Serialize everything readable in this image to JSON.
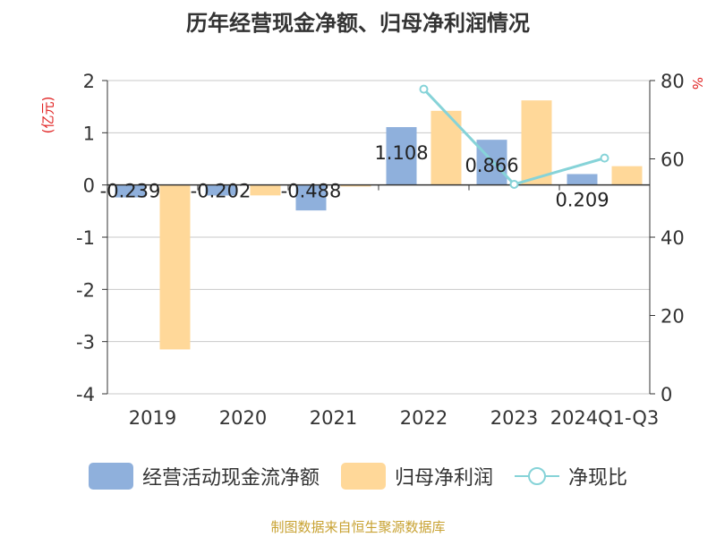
{
  "title": "历年经营现金净额、归母净利润情况",
  "left_unit": "(亿元)",
  "right_unit": "%",
  "source": "制图数据来自恒生聚源数据库",
  "colors": {
    "cash": "#8fb0dc",
    "profit": "#ffd899",
    "ratio": "#86d3d8"
  },
  "legend": [
    {
      "name": "经营活动现金流净额",
      "kind": "bar",
      "color": "#8fb0dc"
    },
    {
      "name": "归母净利润",
      "kind": "bar",
      "color": "#ffd899"
    },
    {
      "name": "净现比",
      "kind": "line",
      "color": "#86d3d8"
    }
  ],
  "chart_data": {
    "type": "bar",
    "categories": [
      "2019",
      "2020",
      "2021",
      "2022",
      "2023",
      "2024Q1-Q3"
    ],
    "series": [
      {
        "name": "经营活动现金流净额",
        "type": "bar",
        "axis": "left",
        "color": "#8fb0dc",
        "values": [
          -0.239,
          -0.202,
          -0.488,
          1.108,
          0.866,
          0.209
        ],
        "labels": [
          "-0.239",
          "-0.202",
          "-0.488",
          "1.108",
          "0.866",
          "0.209"
        ]
      },
      {
        "name": "归母净利润",
        "type": "bar",
        "axis": "left",
        "color": "#ffd899",
        "values": [
          -3.15,
          -0.2,
          -0.03,
          1.42,
          1.62,
          0.36
        ]
      },
      {
        "name": "净现比",
        "type": "line",
        "axis": "right",
        "color": "#86d3d8",
        "values": [
          null,
          null,
          null,
          77.8,
          53.5,
          60.2
        ]
      }
    ],
    "left_axis": {
      "min": -4,
      "max": 2,
      "ticks": [
        -4,
        -3,
        -2,
        -1,
        0,
        1,
        2
      ]
    },
    "right_axis": {
      "min": 0,
      "max": 80,
      "ticks": [
        0,
        20,
        40,
        60,
        80
      ]
    },
    "grid": true,
    "legend_position": "bottom"
  }
}
